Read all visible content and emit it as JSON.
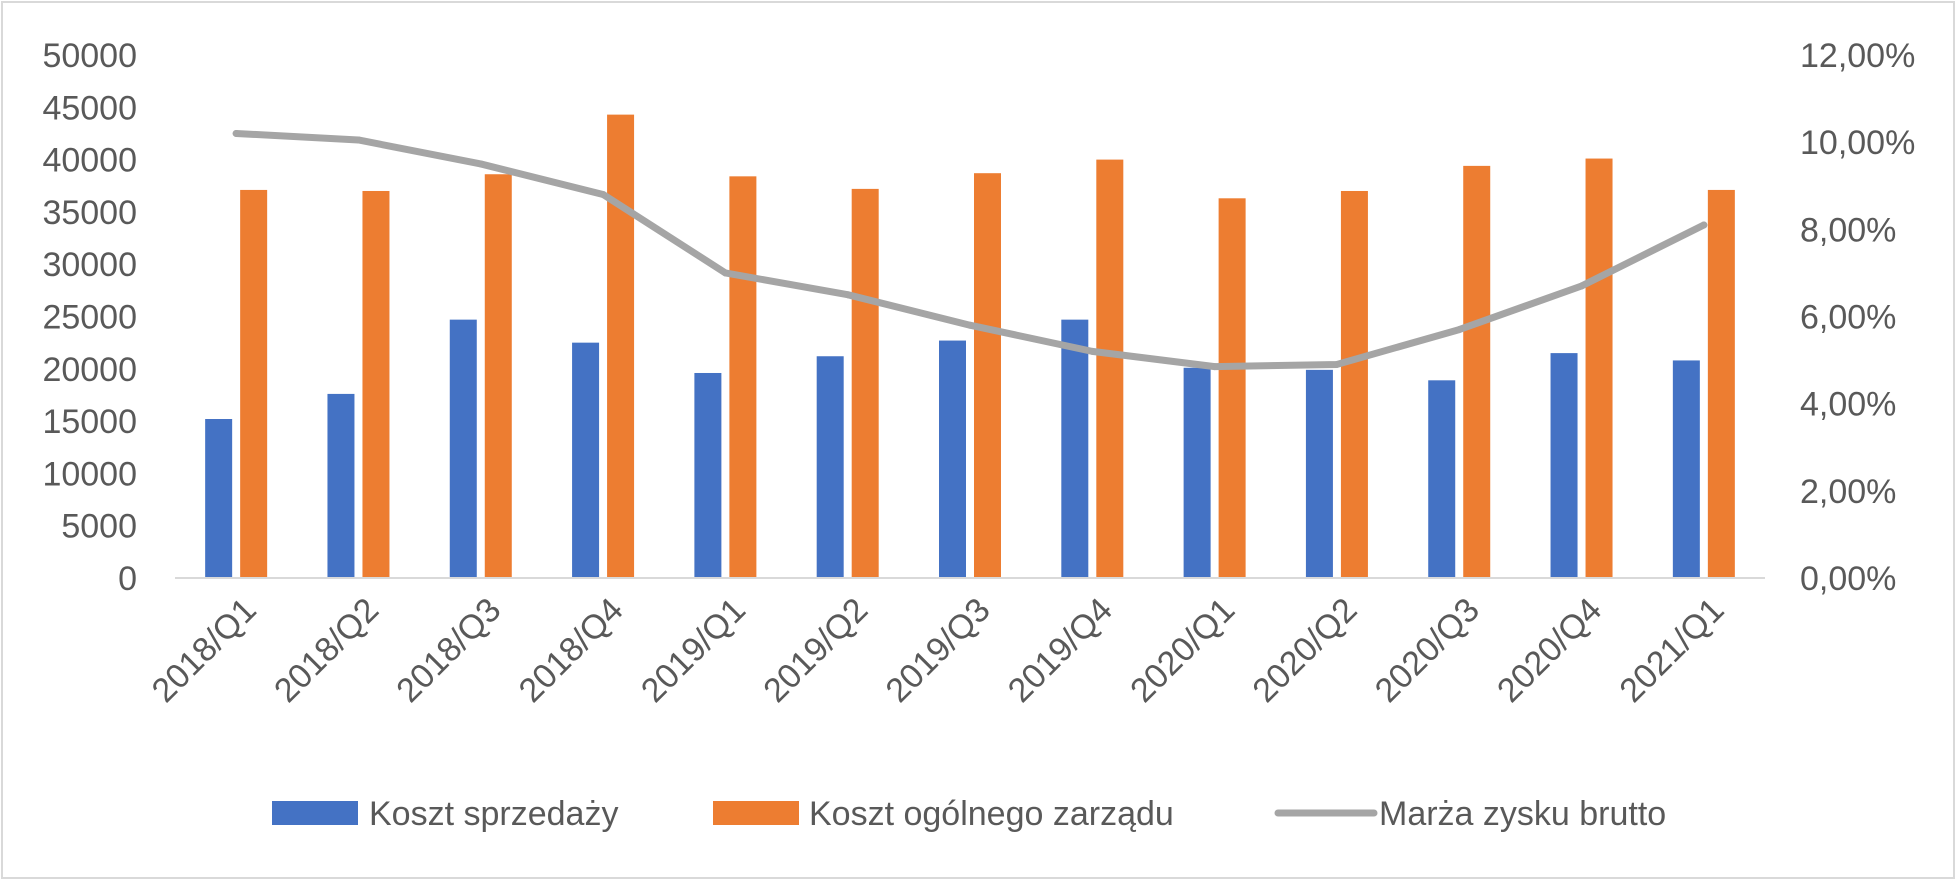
{
  "chart_data": {
    "type": "bar",
    "combo": "bar+line",
    "categories": [
      "2018/Q1",
      "2018/Q2",
      "2018/Q3",
      "2018/Q4",
      "2019/Q1",
      "2019/Q2",
      "2019/Q3",
      "2019/Q4",
      "2020/Q1",
      "2020/Q2",
      "2020/Q3",
      "2020/Q4",
      "2021/Q1"
    ],
    "series": [
      {
        "name": "Koszt sprzedaży",
        "type": "bar",
        "axis": "left",
        "color": "#4472c4",
        "values": [
          15200,
          17600,
          24700,
          22500,
          19600,
          21200,
          22700,
          24700,
          20100,
          19900,
          18900,
          21500,
          20800
        ]
      },
      {
        "name": "Koszt ogólnego zarządu",
        "type": "bar",
        "axis": "left",
        "color": "#ed7d31",
        "values": [
          37100,
          37000,
          38600,
          44300,
          38400,
          37200,
          38700,
          40000,
          36300,
          37000,
          39400,
          40100,
          37100
        ]
      },
      {
        "name": "Marża zysku brutto",
        "type": "line",
        "axis": "right",
        "color": "#a5a5a5",
        "values": [
          0.102,
          0.1005,
          0.095,
          0.088,
          0.07,
          0.065,
          0.058,
          0.052,
          0.0485,
          0.049,
          0.057,
          0.067,
          0.081
        ]
      }
    ],
    "y_left": {
      "ylim": [
        0,
        50000
      ],
      "ticks": [
        "0",
        "5000",
        "10000",
        "15000",
        "20000",
        "25000",
        "30000",
        "35000",
        "40000",
        "45000",
        "50000"
      ]
    },
    "y_right": {
      "ylim": [
        0,
        0.12
      ],
      "ticks": [
        "0,00%",
        "2,00%",
        "4,00%",
        "6,00%",
        "8,00%",
        "10,00%",
        "12,00%"
      ]
    },
    "title": "",
    "xlabel": "",
    "ylabel": "",
    "grid": false,
    "legend_position": "bottom"
  }
}
